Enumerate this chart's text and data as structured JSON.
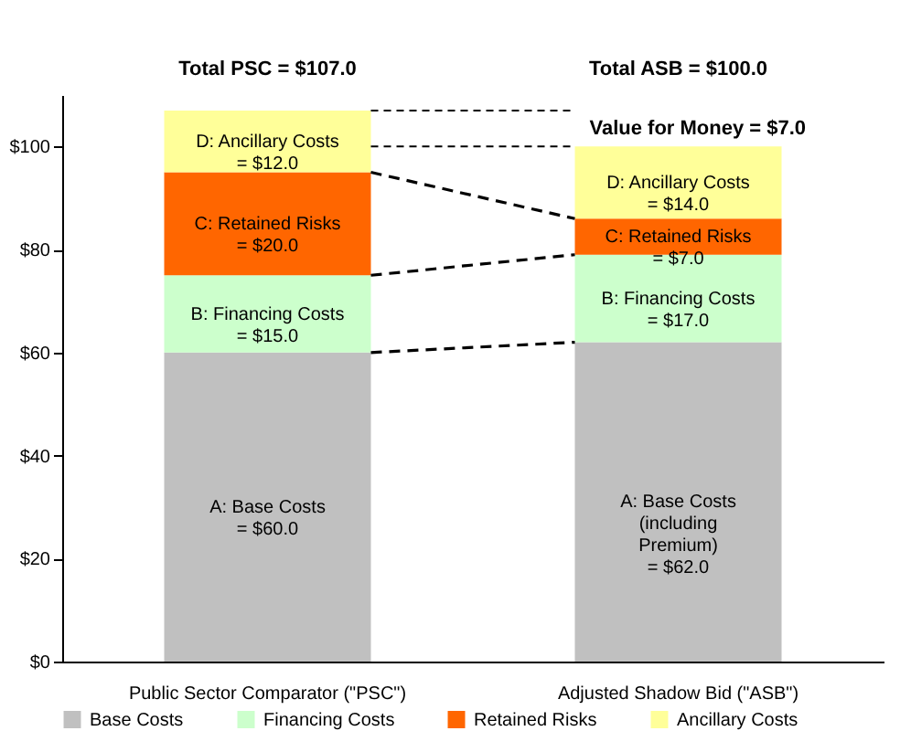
{
  "chart_data": {
    "type": "bar",
    "stacked": true,
    "categories": [
      "Public Sector Comparator (\"PSC\")",
      "Adjusted Shadow Bid (\"ASB\")"
    ],
    "series": [
      {
        "name": "Base Costs",
        "color": "#c0c0c0",
        "values": [
          60,
          62
        ],
        "value_labels": [
          "A:  Base Costs\n\n= $60.0",
          "A:  Base Costs\n(including\nPremium)\n= $62.0"
        ]
      },
      {
        "name": "Financing Costs",
        "color": "#ccffcc",
        "values": [
          15,
          17
        ],
        "value_labels": [
          "B:  Financing Costs\n= $15.0",
          "B:  Financing Costs\n= $17.0"
        ]
      },
      {
        "name": "Retained Risks",
        "color": "#ff6600",
        "values": [
          20,
          7
        ],
        "value_labels": [
          "C:  Retained Risks\n\n= $20.0",
          "C:  Retained Risks\n= $7.0"
        ]
      },
      {
        "name": "Ancillary Costs",
        "color": "#ffff99",
        "values": [
          12,
          14
        ],
        "value_labels": [
          "D:  Ancillary Costs\n= $12.0",
          "D:  Ancillary Costs\n\n= $14.0"
        ]
      }
    ],
    "annotations": [
      "Total PSC = $107.0",
      "Total ASB = $100.0",
      "Value for Money = $7.0"
    ],
    "ref_lines": [
      {
        "axis": "y",
        "value": 107,
        "line_style": "dashed"
      },
      {
        "axis": "y",
        "value": 100,
        "line_style": "dashed"
      }
    ],
    "ylim": [
      0,
      110
    ],
    "yticks": [
      {
        "value": 0,
        "label": "$0"
      },
      {
        "value": 20,
        "label": "$20"
      },
      {
        "value": 40,
        "label": "$40"
      },
      {
        "value": 60,
        "label": "$60"
      },
      {
        "value": 80,
        "label": "$80"
      },
      {
        "value": 100,
        "label": "$100"
      }
    ],
    "grid": false,
    "legend": "bottom"
  }
}
